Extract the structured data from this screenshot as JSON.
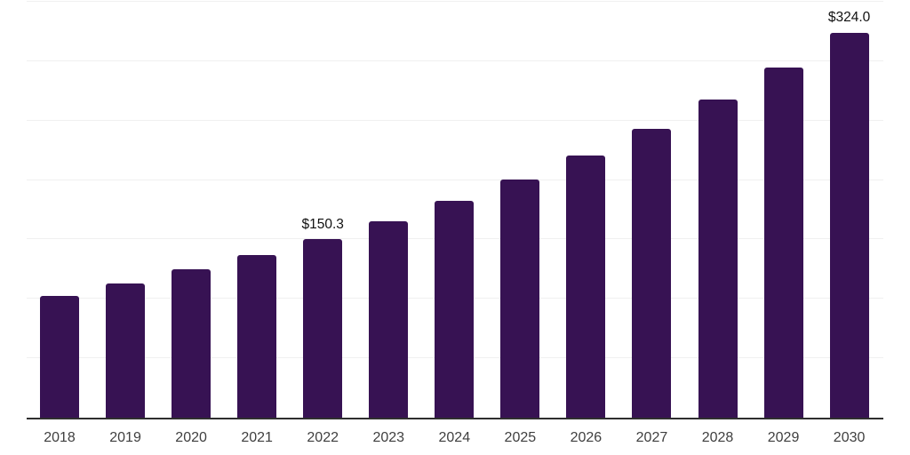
{
  "chart_data": {
    "type": "bar",
    "title": "",
    "xlabel": "",
    "ylabel": "",
    "categories": [
      "2018",
      "2019",
      "2020",
      "2021",
      "2022",
      "2023",
      "2024",
      "2025",
      "2026",
      "2027",
      "2028",
      "2029",
      "2030"
    ],
    "values": [
      102.8,
      113.3,
      124.9,
      136.9,
      150.3,
      165.5,
      182.2,
      200.6,
      220.8,
      243.1,
      267.6,
      294.6,
      324.0
    ],
    "data_labels": {
      "2022": "$150.3",
      "2030": "$324.0"
    },
    "ylim": [
      0,
      350
    ],
    "gridline_step": 50,
    "grid": "horizontal",
    "legend_position": "none",
    "y_tick_labels_visible": false,
    "colors": {
      "bar": "#371253",
      "gridline": "#f0f0f0",
      "axis_line": "#2f2f2f",
      "tick_label": "#3f3f3f",
      "value_label": "#111111",
      "background": "#ffffff"
    }
  }
}
